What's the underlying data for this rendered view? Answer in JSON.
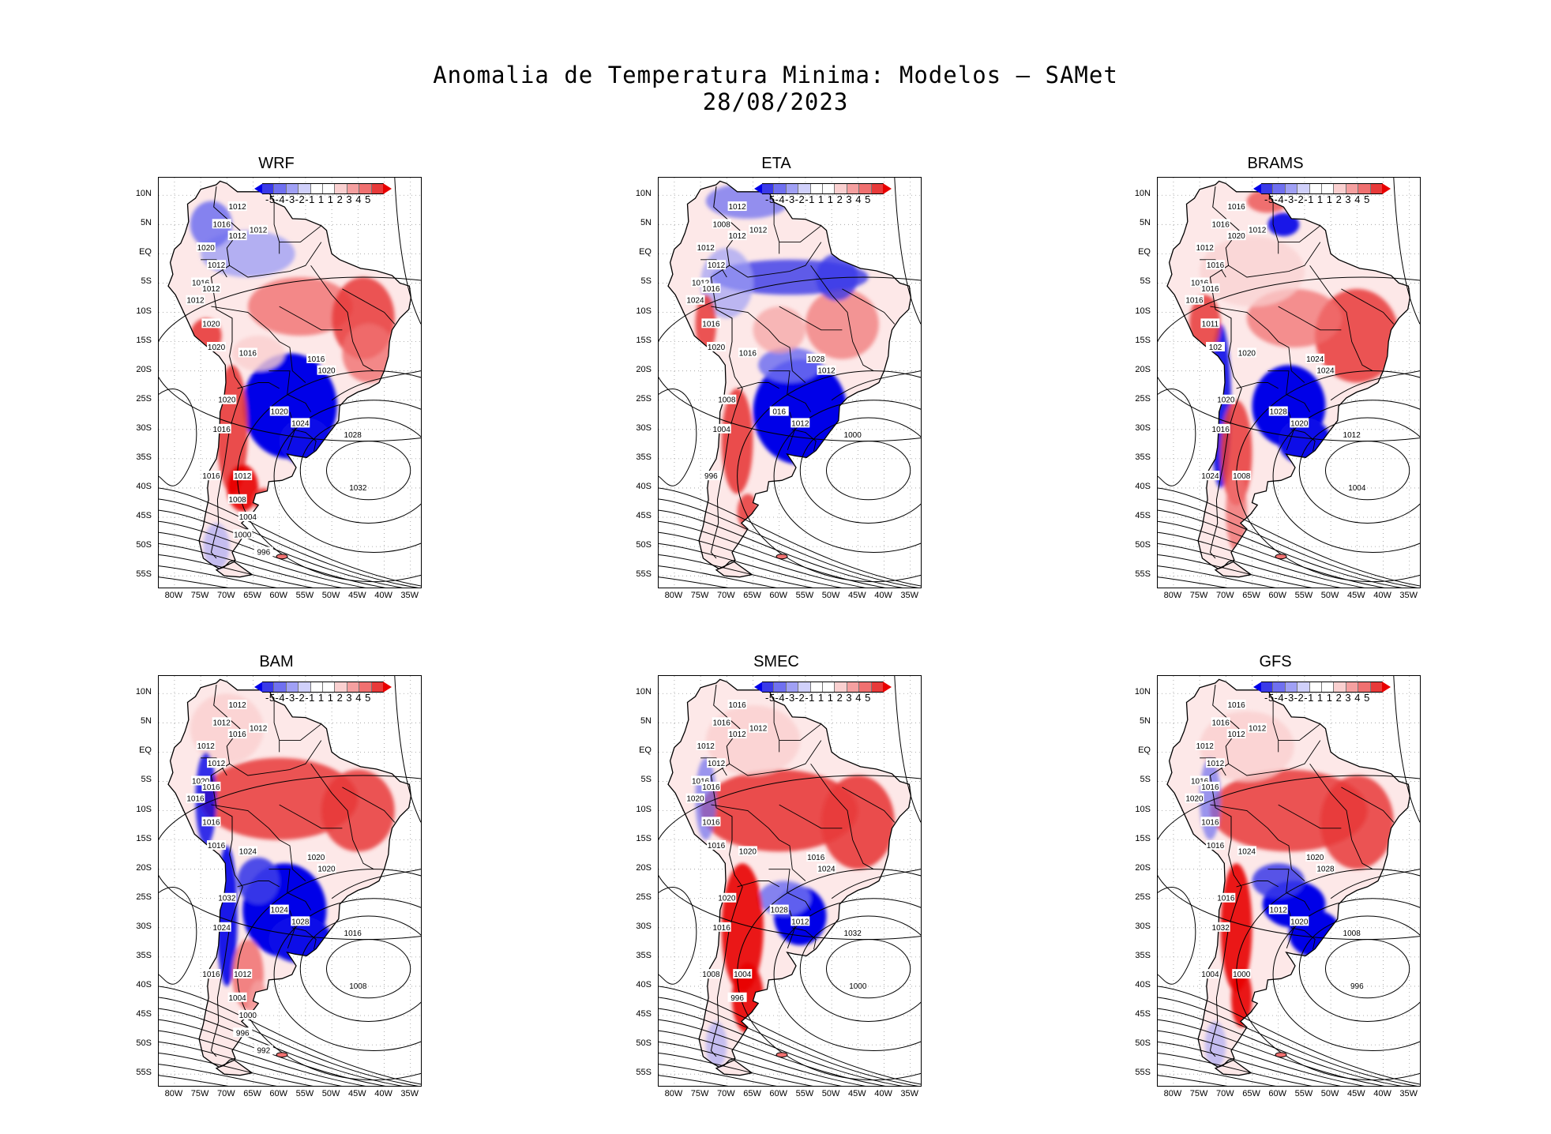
{
  "figure": {
    "title_line1": "Anomalia de Temperatura Minima: Modelos — SAMet",
    "title_line2": "28/08/2023"
  },
  "axes": {
    "lat_labels": [
      "10N",
      "5N",
      "EQ",
      "5S",
      "10S",
      "15S",
      "20S",
      "25S",
      "30S",
      "35S",
      "40S",
      "45S",
      "50S",
      "55S"
    ],
    "lon_labels": [
      "80W",
      "75W",
      "70W",
      "65W",
      "60W",
      "55W",
      "50W",
      "45W",
      "40W",
      "35W"
    ]
  },
  "colorbar": {
    "labels_text": "-5-4-3-2-1 1 1 2 3 4 5",
    "colors": [
      "#0000e8",
      "#3a3ae8",
      "#7070f0",
      "#a0a0f5",
      "#d0d0fa",
      "#ffffff",
      "#ffffff",
      "#fad0d0",
      "#f5a0a0",
      "#f07070",
      "#e83a3a",
      "#e80000"
    ]
  },
  "panels": [
    {
      "title": "WRF",
      "contour_labels": [
        "1012",
        "1016",
        "1012",
        "1012",
        "1020",
        "1012",
        "1016",
        "1012",
        "1012",
        "1020",
        "1020",
        "1016",
        "1016",
        "1020",
        "1020",
        "1024",
        "1020",
        "1016",
        "1028",
        "1016",
        "1012",
        "1032",
        "1008",
        "1004",
        "1000",
        "996"
      ]
    },
    {
      "title": "ETA",
      "contour_labels": [
        "1012",
        "1008",
        "1012",
        "1012",
        "1012",
        "1012",
        "1012",
        "1016",
        "1024",
        "1016",
        "1020",
        "1016",
        "1028",
        "1012",
        "016",
        "1012",
        "1008",
        "1004",
        "1000",
        "996"
      ]
    },
    {
      "title": "BRAMS",
      "contour_labels": [
        "1016",
        "1016",
        "1012",
        "1020",
        "1012",
        "1016",
        "1016",
        "1016",
        "1016",
        "1011",
        "102",
        "1020",
        "1024",
        "1024",
        "1028",
        "1020",
        "1020",
        "1016",
        "1012",
        "1024",
        "1008",
        "1004"
      ]
    },
    {
      "title": "BAM",
      "contour_labels": [
        "1012",
        "1012",
        "1012",
        "1016",
        "1012",
        "1012",
        "1020",
        "1016",
        "1016",
        "1016",
        "1016",
        "1024",
        "1020",
        "1020",
        "1024",
        "1028",
        "1032",
        "1024",
        "1016",
        "1016",
        "1012",
        "1008",
        "1004",
        "1000",
        "996",
        "992"
      ]
    },
    {
      "title": "SMEC",
      "contour_labels": [
        "1016",
        "1016",
        "1012",
        "1012",
        "1012",
        "1012",
        "1016",
        "1016",
        "1020",
        "1016",
        "1016",
        "1020",
        "1016",
        "1024",
        "1028",
        "1012",
        "1020",
        "1016",
        "1032",
        "1008",
        "1004",
        "1000",
        "996"
      ]
    },
    {
      "title": "GFS",
      "contour_labels": [
        "1016",
        "1016",
        "1012",
        "1012",
        "1012",
        "1012",
        "1016",
        "1016",
        "1020",
        "1016",
        "1016",
        "1024",
        "1020",
        "1028",
        "1012",
        "1020",
        "1016",
        "1032",
        "1008",
        "1004",
        "1000",
        "996"
      ]
    }
  ]
}
